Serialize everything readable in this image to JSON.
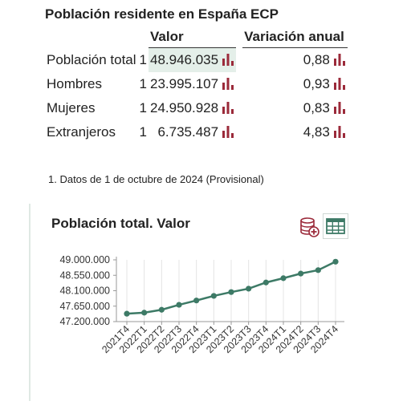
{
  "header": {
    "title": "Población residente en España ECP"
  },
  "stats_table": {
    "col_value": "Valor",
    "col_change": "Variación anual",
    "rows": [
      {
        "label": "Población total",
        "note": "1",
        "value": "48.946.035",
        "change": "0,88"
      },
      {
        "label": "Hombres",
        "note": "1",
        "value": "23.995.107",
        "change": "0,93"
      },
      {
        "label": "Mujeres",
        "note": "1",
        "value": "24.950.928",
        "change": "0,83"
      },
      {
        "label": "Extranjeros",
        "note": "1",
        "value": "6.735.487",
        "change": "4,83"
      }
    ]
  },
  "footnote": "1. Datos de 1 de octubre de 2024 (Provisional)",
  "colors": {
    "icon_bar": "#9b2a3a",
    "line": "#3d7a66",
    "highlight": "#e4efe9"
  },
  "icons": {
    "chart_bar": "bar-chart-icon",
    "database_add": "database-add-icon",
    "table": "table-icon"
  },
  "chart_data": {
    "type": "line",
    "title": "Población total. Valor",
    "categories": [
      "2021T4",
      "2022T1",
      "2022T2",
      "2022T3",
      "2022T4",
      "2023T1",
      "2023T2",
      "2023T3",
      "2023T4",
      "2024T1",
      "2024T2",
      "2024T3",
      "2024T4"
    ],
    "series": [
      {
        "values": [
          47430000,
          47460000,
          47545000,
          47690000,
          47815000,
          47950000,
          48060000,
          48160000,
          48340000,
          48465000,
          48600000,
          48700000,
          48946035
        ]
      }
    ],
    "ylim": [
      47200000,
      49000000
    ],
    "yticks": [
      "49.000.000",
      "48.550.000",
      "48.100.000",
      "47.650.000",
      "47.200.000"
    ],
    "ytick_values": [
      49000000,
      48550000,
      48100000,
      47650000,
      47200000
    ],
    "grid": "vertical",
    "legend": "none"
  }
}
